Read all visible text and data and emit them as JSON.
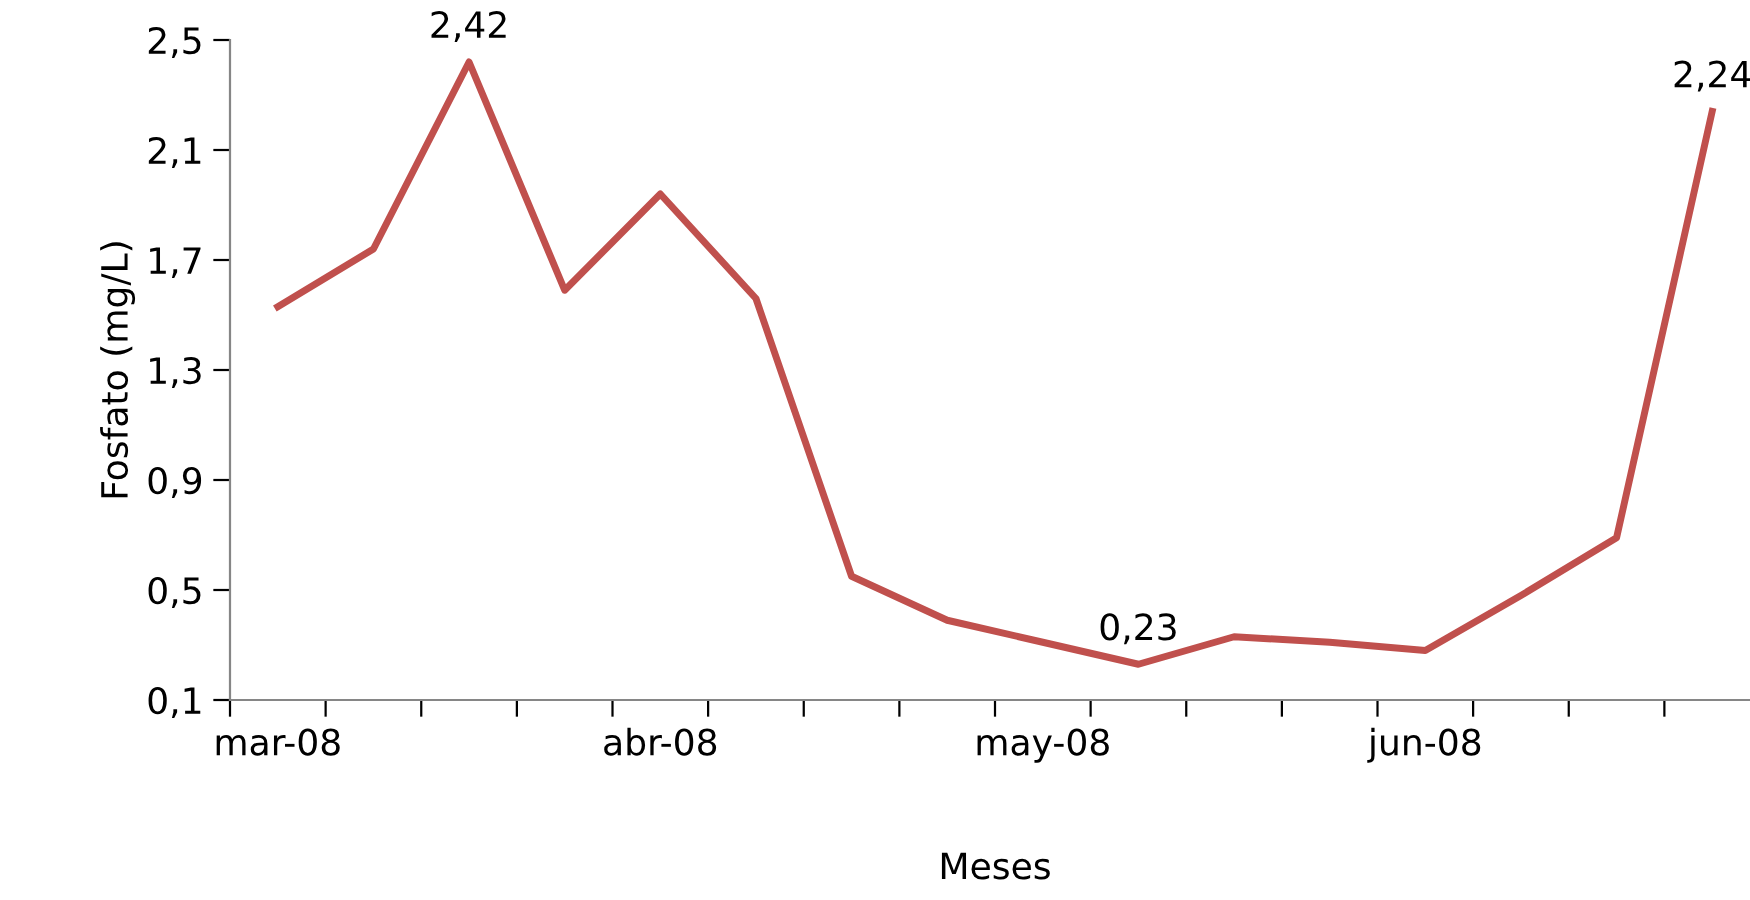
{
  "chart_data": {
    "type": "line",
    "xlabel": "Meses",
    "ylabel": "Fosfato (mg/L)",
    "categories": [
      "mar-08",
      null,
      null,
      null,
      "abr-08",
      null,
      null,
      null,
      "may-08",
      null,
      null,
      null,
      "jun-08",
      null,
      null,
      null
    ],
    "series": [
      {
        "color": "#c0504d",
        "values": [
          1.53,
          1.74,
          2.42,
          1.59,
          1.94,
          1.56,
          0.55,
          0.39,
          0.31,
          0.23,
          0.33,
          0.31,
          0.28,
          0.48,
          0.69,
          2.24
        ],
        "value_labels": [
          null,
          null,
          "2,42",
          null,
          null,
          null,
          null,
          null,
          null,
          "0,23",
          null,
          null,
          null,
          null,
          null,
          "2,24"
        ]
      }
    ],
    "ylim": [
      0.1,
      2.5
    ],
    "yticks": [
      {
        "value": 0.1,
        "label": "0,1"
      },
      {
        "value": 0.5,
        "label": "0,5"
      },
      {
        "value": 0.9,
        "label": "0,9"
      },
      {
        "value": 1.3,
        "label": "1,3"
      },
      {
        "value": 1.7,
        "label": "1,7"
      },
      {
        "value": 2.1,
        "label": "2,1"
      },
      {
        "value": 2.5,
        "label": "2,5"
      }
    ],
    "grid": false,
    "legend": false,
    "marker": "none",
    "line_style": "solid"
  }
}
